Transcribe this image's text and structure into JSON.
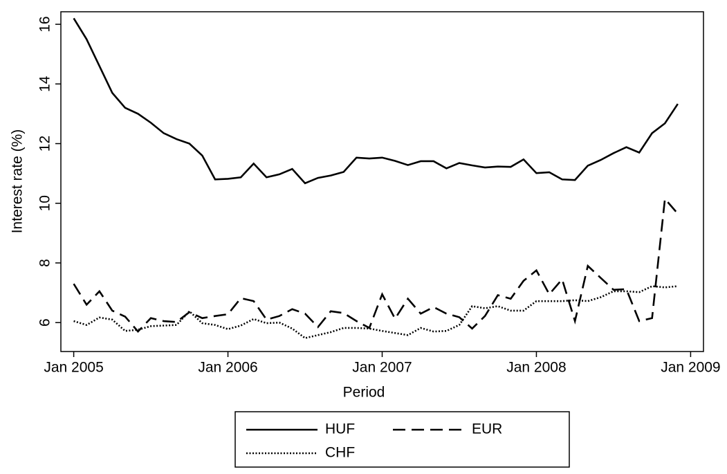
{
  "chart_data": {
    "type": "line",
    "x_label": "Period",
    "y_label": "Interest rate (%)",
    "x": [
      "2005-01",
      "2005-02",
      "2005-03",
      "2005-04",
      "2005-05",
      "2005-06",
      "2005-07",
      "2005-08",
      "2005-09",
      "2005-10",
      "2005-11",
      "2005-12",
      "2006-01",
      "2006-02",
      "2006-03",
      "2006-04",
      "2006-05",
      "2006-06",
      "2006-07",
      "2006-08",
      "2006-09",
      "2006-10",
      "2006-11",
      "2006-12",
      "2007-01",
      "2007-02",
      "2007-03",
      "2007-04",
      "2007-05",
      "2007-06",
      "2007-07",
      "2007-08",
      "2007-09",
      "2007-10",
      "2007-11",
      "2007-12",
      "2008-01",
      "2008-02",
      "2008-03",
      "2008-04",
      "2008-05",
      "2008-06",
      "2008-07",
      "2008-08",
      "2008-09",
      "2008-10",
      "2008-11",
      "2008-12"
    ],
    "series": [
      {
        "name": "HUF",
        "color": "#000000",
        "dash": "solid",
        "values": [
          16.2,
          15.5,
          14.6,
          13.7,
          13.2,
          13.0,
          12.7,
          12.35,
          12.15,
          12.0,
          11.6,
          10.8,
          10.82,
          10.87,
          11.33,
          10.87,
          10.97,
          11.15,
          10.67,
          10.85,
          10.93,
          11.05,
          11.53,
          11.5,
          11.53,
          11.42,
          11.28,
          11.41,
          11.41,
          11.17,
          11.35,
          11.27,
          11.2,
          11.23,
          11.22,
          11.47,
          11.01,
          11.04,
          10.8,
          10.78,
          11.26,
          11.45,
          11.68,
          11.88,
          11.7,
          12.35,
          12.68,
          13.33
        ]
      },
      {
        "name": "EUR",
        "color": "#000000",
        "dash": "dashed",
        "values": [
          7.3,
          6.6,
          7.05,
          6.4,
          6.2,
          5.7,
          6.15,
          6.05,
          6.02,
          6.35,
          6.15,
          6.22,
          6.28,
          6.82,
          6.72,
          6.1,
          6.22,
          6.45,
          6.3,
          5.85,
          6.38,
          6.32,
          6.05,
          5.82,
          6.95,
          6.13,
          6.8,
          6.3,
          6.52,
          6.3,
          6.18,
          5.8,
          6.22,
          6.92,
          6.8,
          7.4,
          7.75,
          6.95,
          7.45,
          6.05,
          7.9,
          7.5,
          7.1,
          7.12,
          6.05,
          6.15,
          10.15,
          9.65
        ]
      },
      {
        "name": "CHF",
        "color": "#000000",
        "dash": "dotted",
        "values": [
          6.05,
          5.92,
          6.17,
          6.1,
          5.72,
          5.76,
          5.88,
          5.9,
          5.92,
          6.38,
          5.98,
          5.92,
          5.78,
          5.9,
          6.12,
          5.98,
          6.0,
          5.8,
          5.48,
          5.58,
          5.68,
          5.82,
          5.82,
          5.8,
          5.72,
          5.65,
          5.58,
          5.82,
          5.7,
          5.72,
          5.92,
          6.55,
          6.48,
          6.55,
          6.4,
          6.4,
          6.72,
          6.72,
          6.72,
          6.75,
          6.72,
          6.85,
          7.05,
          7.05,
          7.02,
          7.22,
          7.18,
          7.22
        ]
      }
    ],
    "xlim": [
      "2004-12",
      "2009-02"
    ],
    "xticks": [
      {
        "value": "2005-01",
        "label": "Jan 2005"
      },
      {
        "value": "2006-01",
        "label": "Jan 2006"
      },
      {
        "value": "2007-01",
        "label": "Jan 2007"
      },
      {
        "value": "2008-01",
        "label": "Jan 2008"
      },
      {
        "value": "2009-01",
        "label": "Jan 2009"
      }
    ],
    "ylim": [
      5.03,
      16.42
    ],
    "yticks": [
      6,
      8,
      10,
      12,
      14,
      16
    ],
    "grid": false,
    "legend": "bottom"
  }
}
